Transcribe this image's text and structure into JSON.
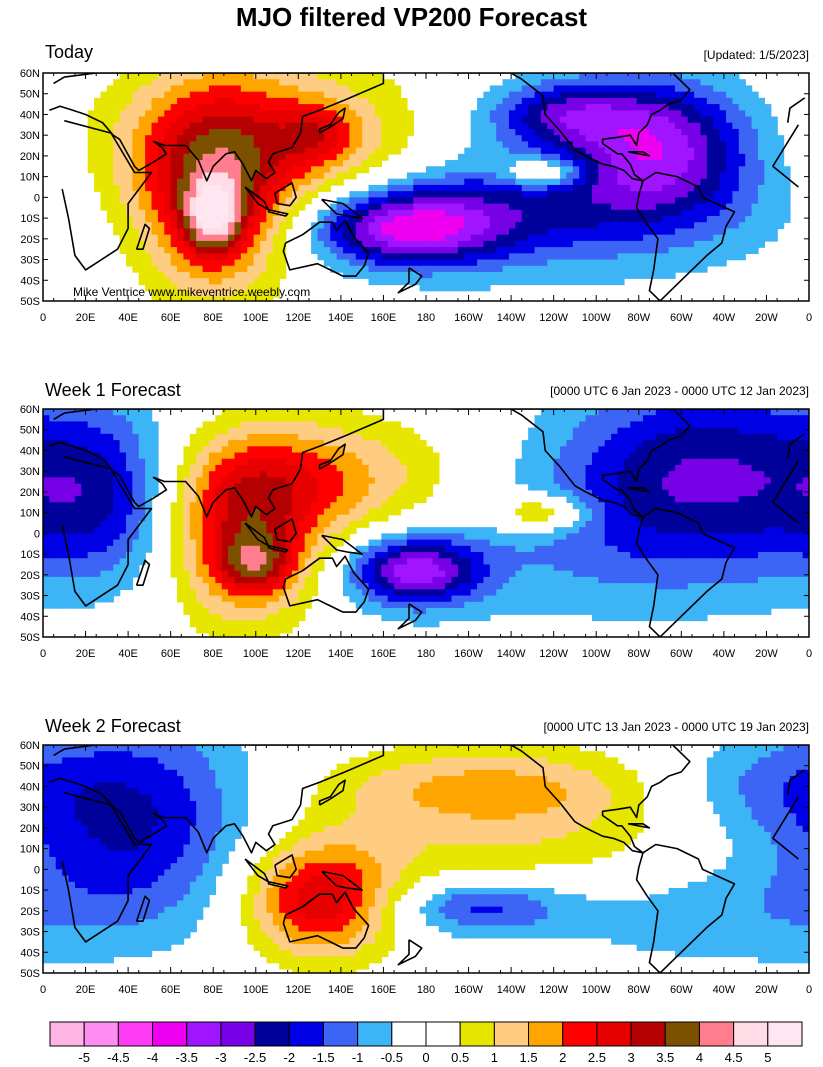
{
  "title": "MJO filtered VP200 Forecast",
  "panels": [
    {
      "title": "Today",
      "info": "[Updated: 1/5/2023]",
      "credit": "Mike Ventrice www.mikeventrice.weebly.com"
    },
    {
      "title": "Week 1 Forecast",
      "info": "[0000 UTC 6 Jan 2023 - 0000 UTC 12 Jan 2023]",
      "credit": ""
    },
    {
      "title": "Week 2 Forecast",
      "info": "[0000 UTC 13 Jan 2023 - 0000 UTC 19 Jan 2023]",
      "credit": ""
    }
  ],
  "axes": {
    "lat_labels": [
      "60N",
      "50N",
      "40N",
      "30N",
      "20N",
      "10N",
      "0",
      "10S",
      "20S",
      "30S",
      "40S",
      "50S"
    ],
    "lon_labels": [
      "0",
      "20E",
      "40E",
      "60E",
      "80E",
      "100E",
      "120E",
      "140E",
      "160E",
      "180",
      "160W",
      "140W",
      "120W",
      "100W",
      "80W",
      "60W",
      "40W",
      "20W",
      "0"
    ]
  },
  "colorbar": {
    "labels": [
      "-5",
      "-4.5",
      "-4",
      "-3.5",
      "-3",
      "-2.5",
      "-2",
      "-1.5",
      "-1",
      "-0.5",
      "0",
      "0.5",
      "1",
      "1.5",
      "2",
      "2.5",
      "3",
      "3.5",
      "4",
      "4.5",
      "5"
    ],
    "colors": [
      "#ffb4e6",
      "#ff8cf0",
      "#ff3cf5",
      "#f000f0",
      "#a014ff",
      "#7800e6",
      "#00009b",
      "#0000e6",
      "#3c64f5",
      "#3cb4f5",
      "#ffffff",
      "#ffffff",
      "#e6e600",
      "#ffcd82",
      "#ffa500",
      "#ff0000",
      "#e60000",
      "#b40000",
      "#7d5000",
      "#ff7d8c",
      "#ffdce6",
      "#ffe6f0"
    ]
  },
  "fields": [
    {
      "blobs": [
        {
          "lon": 105,
          "lat": 25,
          "rx": 75,
          "ry": 40,
          "v": 2.2
        },
        {
          "lon": 80,
          "lat": 0,
          "rx": 35,
          "ry": 50,
          "v": 2.5
        },
        {
          "lon": 80,
          "lat": -10,
          "rx": 14,
          "ry": 18,
          "v": 2.5
        },
        {
          "lon": 130,
          "lat": 30,
          "rx": 18,
          "ry": 14,
          "v": 1.2
        },
        {
          "lon": 170,
          "lat": -15,
          "rx": 45,
          "ry": 18,
          "v": -3.2
        },
        {
          "lon": 230,
          "lat": -5,
          "rx": 90,
          "ry": 25,
          "v": -1.4
        },
        {
          "lon": 245,
          "lat": 40,
          "rx": 35,
          "ry": 15,
          "v": -2.0
        },
        {
          "lon": 290,
          "lat": 25,
          "rx": 40,
          "ry": 30,
          "v": -2.7
        },
        {
          "lon": 255,
          "lat": 5,
          "rx": 120,
          "ry": 60,
          "v": -0.6
        },
        {
          "lon": 235,
          "lat": 12,
          "rx": 18,
          "ry": 7,
          "v": 2.0
        }
      ]
    },
    {
      "blobs": [
        {
          "lon": 120,
          "lat": 25,
          "rx": 70,
          "ry": 30,
          "v": 2.1
        },
        {
          "lon": 95,
          "lat": -5,
          "rx": 35,
          "ry": 40,
          "v": 2.6
        },
        {
          "lon": 100,
          "lat": -15,
          "rx": 18,
          "ry": 14,
          "v": 1.7
        },
        {
          "lon": 175,
          "lat": -18,
          "rx": 30,
          "ry": 16,
          "v": -3.0
        },
        {
          "lon": 310,
          "lat": 30,
          "rx": 70,
          "ry": 45,
          "v": -2.4
        },
        {
          "lon": 30,
          "lat": 20,
          "rx": 40,
          "ry": 40,
          "v": -1.9
        },
        {
          "lon": 240,
          "lat": -10,
          "rx": 130,
          "ry": 40,
          "v": -0.7
        },
        {
          "lon": 235,
          "lat": 10,
          "rx": 22,
          "ry": 9,
          "v": 1.8
        }
      ]
    },
    {
      "blobs": [
        {
          "lon": 40,
          "lat": 25,
          "rx": 60,
          "ry": 50,
          "v": -2.1
        },
        {
          "lon": 130,
          "lat": -15,
          "rx": 35,
          "ry": 28,
          "v": 2.9
        },
        {
          "lon": 210,
          "lat": 40,
          "rx": 80,
          "ry": 20,
          "v": 1.6
        },
        {
          "lon": 225,
          "lat": 10,
          "rx": 100,
          "ry": 25,
          "v": 0.9
        },
        {
          "lon": 205,
          "lat": -18,
          "rx": 40,
          "ry": 13,
          "v": -1.6
        },
        {
          "lon": 310,
          "lat": -20,
          "rx": 90,
          "ry": 30,
          "v": -0.8
        },
        {
          "lon": 330,
          "lat": 40,
          "rx": 50,
          "ry": 25,
          "v": -0.8
        }
      ]
    }
  ]
}
